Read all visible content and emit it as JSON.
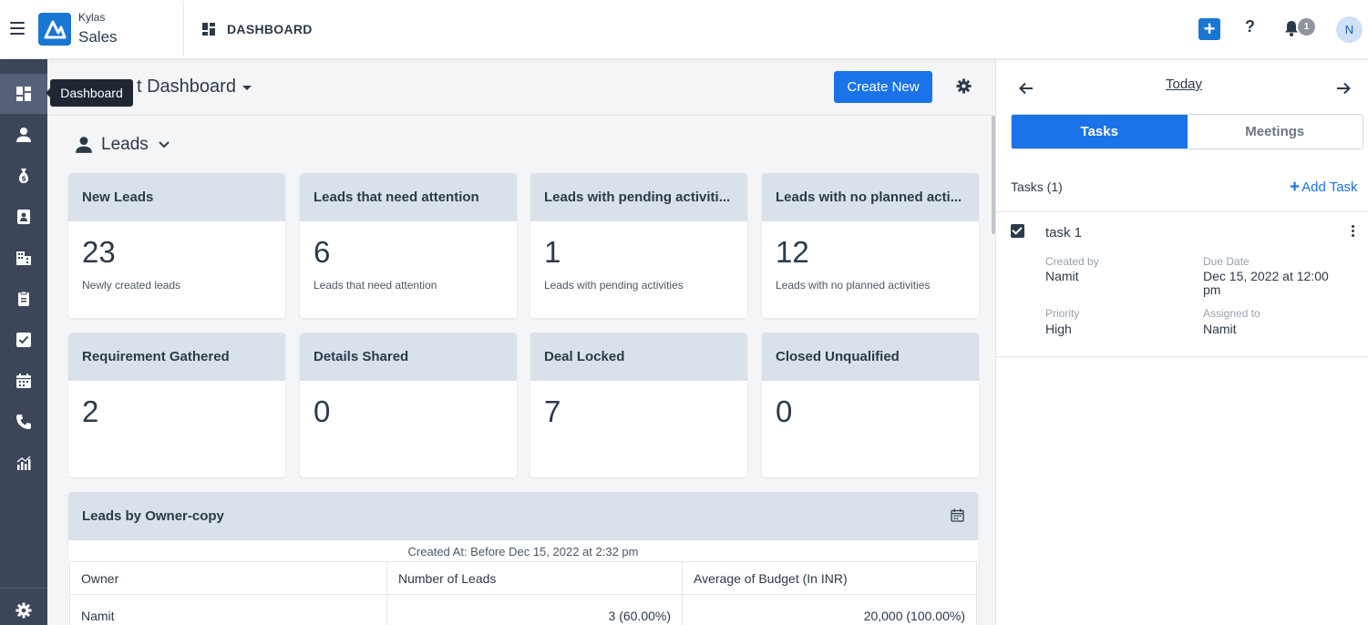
{
  "header": {
    "brand_top": "Kylas",
    "brand_bottom": "Sales",
    "title": "DASHBOARD",
    "notification_count": "1",
    "avatar_initial": "N"
  },
  "sidebar": {
    "tooltip": "Dashboard",
    "items": [
      {
        "icon": "dashboard-icon",
        "active": true
      },
      {
        "icon": "user-icon"
      },
      {
        "icon": "money-bag-icon"
      },
      {
        "icon": "contact-card-icon"
      },
      {
        "icon": "building-icon"
      },
      {
        "icon": "clipboard-icon"
      },
      {
        "icon": "checkbox-icon"
      },
      {
        "icon": "calendar-icon"
      },
      {
        "icon": "phone-icon"
      },
      {
        "icon": "report-chart-icon"
      }
    ],
    "bottom_icon": "gear-icon"
  },
  "main": {
    "dashboard_title": "t Dashboard",
    "create_button": "Create New",
    "entity_selector": "Leads",
    "cards": [
      {
        "title": "New Leads",
        "value": "23",
        "subtitle": "Newly created leads"
      },
      {
        "title": "Leads that need attention",
        "value": "6",
        "subtitle": "Leads that need attention"
      },
      {
        "title": "Leads with pending activiti...",
        "value": "1",
        "subtitle": "Leads with pending activities"
      },
      {
        "title": "Leads with no planned acti...",
        "value": "12",
        "subtitle": "Leads with no planned activities"
      },
      {
        "title": "Requirement Gathered",
        "value": "2",
        "subtitle": ""
      },
      {
        "title": "Details Shared",
        "value": "0",
        "subtitle": ""
      },
      {
        "title": "Deal Locked",
        "value": "7",
        "subtitle": ""
      },
      {
        "title": "Closed Unqualified",
        "value": "0",
        "subtitle": ""
      }
    ],
    "table_widget": {
      "title": "Leads by Owner-copy",
      "subtitle": "Created At: Before Dec 15, 2022 at 2:32 pm",
      "columns": [
        "Owner",
        "Number of Leads",
        "Average of Budget (In INR)"
      ],
      "rows": [
        [
          "Namit",
          "3 (60.00%)",
          "20,000 (100.00%)"
        ]
      ]
    }
  },
  "right_panel": {
    "date_label": "Today",
    "tabs": [
      "Tasks",
      "Meetings"
    ],
    "tasks_count": "Tasks (1)",
    "add_task": "Add Task",
    "task": {
      "name": "task 1",
      "created_by_label": "Created by",
      "created_by": "Namit",
      "due_date_label": "Due Date",
      "due_date": "Dec 15, 2022 at 12:00 pm",
      "priority_label": "Priority",
      "priority": "High",
      "assigned_to_label": "Assigned to",
      "assigned_to": "Namit"
    }
  }
}
